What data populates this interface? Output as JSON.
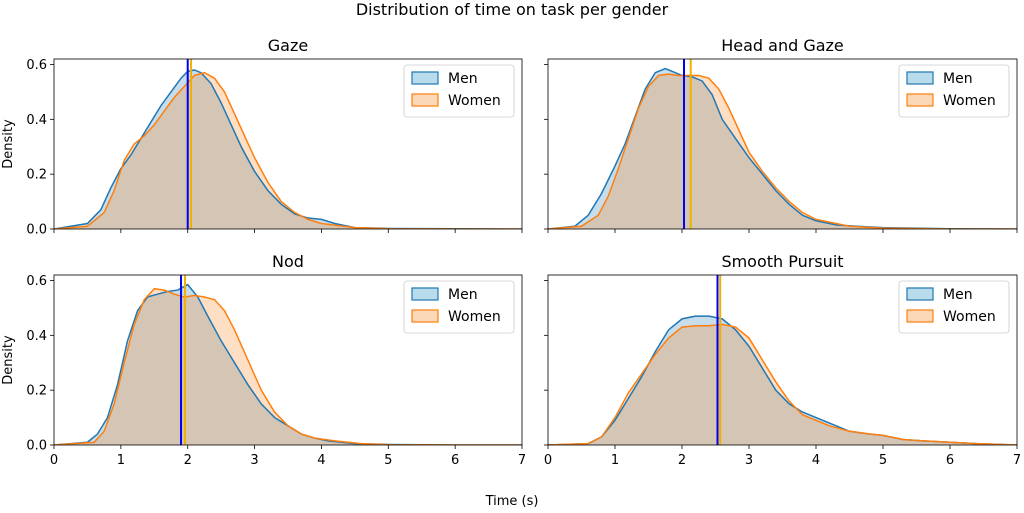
{
  "figure": {
    "title": "Distribution of time on task per gender",
    "xlabel": "Time (s)",
    "ylabel": "Density"
  },
  "chart_data": [
    {
      "type": "area",
      "title": "Gaze",
      "xlim": [
        0,
        7
      ],
      "ylim": [
        0,
        0.62
      ],
      "xticks": [
        "0",
        "1",
        "2",
        "3",
        "4",
        "5",
        "6",
        "7"
      ],
      "yticks": [
        "0.0",
        "0.2",
        "0.4",
        "0.6"
      ],
      "legend": "top-right",
      "series": [
        {
          "name": "Men",
          "color": "#1f77b4",
          "fill": "#b9dcec",
          "mean": 2.0,
          "x": [
            0,
            0.5,
            0.7,
            0.85,
            1.0,
            1.15,
            1.3,
            1.45,
            1.6,
            1.75,
            1.9,
            2.0,
            2.1,
            2.2,
            2.35,
            2.5,
            2.65,
            2.8,
            3.0,
            3.2,
            3.4,
            3.6,
            3.8,
            4.0,
            4.2,
            4.5,
            5.0,
            6.0,
            7.0
          ],
          "y": [
            0.0,
            0.02,
            0.07,
            0.15,
            0.22,
            0.27,
            0.33,
            0.39,
            0.45,
            0.5,
            0.55,
            0.575,
            0.58,
            0.57,
            0.53,
            0.46,
            0.38,
            0.3,
            0.21,
            0.14,
            0.09,
            0.055,
            0.04,
            0.035,
            0.02,
            0.005,
            0.002,
            0.001,
            0.0
          ]
        },
        {
          "name": "Women",
          "color": "#ff7f0e",
          "fill": "#fbd8b8",
          "mean": 2.05,
          "x": [
            0,
            0.5,
            0.75,
            0.9,
            1.05,
            1.2,
            1.35,
            1.5,
            1.65,
            1.8,
            1.95,
            2.1,
            2.25,
            2.4,
            2.55,
            2.7,
            2.85,
            3.0,
            3.2,
            3.4,
            3.6,
            3.8,
            4.0,
            4.5,
            5.0,
            6.0,
            7.0
          ],
          "y": [
            0.0,
            0.01,
            0.06,
            0.14,
            0.25,
            0.31,
            0.34,
            0.38,
            0.43,
            0.48,
            0.52,
            0.56,
            0.57,
            0.55,
            0.5,
            0.42,
            0.34,
            0.26,
            0.17,
            0.1,
            0.06,
            0.035,
            0.02,
            0.005,
            0.001,
            0.0,
            0.0
          ]
        }
      ]
    },
    {
      "type": "area",
      "title": "Head and Gaze",
      "xlim": [
        0,
        7
      ],
      "ylim": [
        0,
        0.62
      ],
      "xticks": [
        "0",
        "1",
        "2",
        "3",
        "4",
        "5",
        "6",
        "7"
      ],
      "yticks": [
        "0.0",
        "0.2",
        "0.4",
        "0.6"
      ],
      "legend": "top-right",
      "series": [
        {
          "name": "Men",
          "color": "#1f77b4",
          "fill": "#b9dcec",
          "mean": 2.03,
          "x": [
            0,
            0.4,
            0.6,
            0.8,
            1.0,
            1.15,
            1.3,
            1.45,
            1.6,
            1.75,
            1.85,
            2.0,
            2.15,
            2.3,
            2.45,
            2.6,
            2.8,
            3.0,
            3.2,
            3.4,
            3.6,
            3.8,
            4.0,
            4.3,
            4.6,
            5.0,
            6.0,
            7.0
          ],
          "y": [
            0.0,
            0.01,
            0.05,
            0.13,
            0.23,
            0.31,
            0.41,
            0.51,
            0.57,
            0.585,
            0.575,
            0.56,
            0.555,
            0.54,
            0.49,
            0.4,
            0.33,
            0.26,
            0.2,
            0.14,
            0.09,
            0.05,
            0.03,
            0.015,
            0.01,
            0.005,
            0.001,
            0.0
          ]
        },
        {
          "name": "Women",
          "color": "#ff7f0e",
          "fill": "#fbd8b8",
          "mean": 2.13,
          "x": [
            0,
            0.5,
            0.75,
            0.9,
            1.05,
            1.2,
            1.35,
            1.5,
            1.65,
            1.8,
            1.95,
            2.1,
            2.25,
            2.4,
            2.55,
            2.7,
            2.85,
            3.0,
            3.2,
            3.4,
            3.6,
            3.8,
            4.0,
            4.5,
            5.0,
            6.0,
            7.0
          ],
          "y": [
            0.0,
            0.01,
            0.05,
            0.12,
            0.22,
            0.33,
            0.44,
            0.52,
            0.56,
            0.565,
            0.56,
            0.56,
            0.56,
            0.55,
            0.51,
            0.44,
            0.36,
            0.28,
            0.21,
            0.15,
            0.1,
            0.06,
            0.035,
            0.01,
            0.003,
            0.0,
            0.0
          ]
        }
      ]
    },
    {
      "type": "area",
      "title": "Nod",
      "xlim": [
        0,
        7
      ],
      "ylim": [
        0,
        0.62
      ],
      "xticks": [
        "0",
        "1",
        "2",
        "3",
        "4",
        "5",
        "6",
        "7"
      ],
      "yticks": [
        "0.0",
        "0.2",
        "0.4",
        "0.6"
      ],
      "legend": "top-right",
      "series": [
        {
          "name": "Men",
          "color": "#1f77b4",
          "fill": "#b9dcec",
          "mean": 1.9,
          "x": [
            0,
            0.5,
            0.65,
            0.8,
            0.95,
            1.1,
            1.25,
            1.4,
            1.55,
            1.7,
            1.85,
            2.0,
            2.15,
            2.3,
            2.5,
            2.7,
            2.9,
            3.1,
            3.3,
            3.5,
            3.7,
            3.9,
            4.1,
            4.5,
            5.0,
            6.0,
            7.0
          ],
          "y": [
            0.0,
            0.01,
            0.04,
            0.1,
            0.22,
            0.38,
            0.49,
            0.54,
            0.55,
            0.56,
            0.565,
            0.585,
            0.54,
            0.47,
            0.38,
            0.3,
            0.22,
            0.15,
            0.1,
            0.07,
            0.04,
            0.025,
            0.015,
            0.005,
            0.002,
            0.0,
            0.0
          ]
        },
        {
          "name": "Women",
          "color": "#ff7f0e",
          "fill": "#fbd8b8",
          "mean": 1.96,
          "x": [
            0,
            0.6,
            0.75,
            0.9,
            1.05,
            1.2,
            1.35,
            1.5,
            1.65,
            1.8,
            1.95,
            2.1,
            2.25,
            2.4,
            2.55,
            2.7,
            2.9,
            3.1,
            3.3,
            3.5,
            3.7,
            3.9,
            4.2,
            4.6,
            5.0,
            6.0,
            7.0
          ],
          "y": [
            0.0,
            0.01,
            0.05,
            0.15,
            0.3,
            0.44,
            0.53,
            0.57,
            0.565,
            0.55,
            0.54,
            0.545,
            0.54,
            0.53,
            0.49,
            0.42,
            0.31,
            0.2,
            0.12,
            0.07,
            0.04,
            0.025,
            0.015,
            0.005,
            0.001,
            0.0,
            0.0
          ]
        }
      ]
    },
    {
      "type": "area",
      "title": "Smooth Pursuit",
      "xlim": [
        0,
        7
      ],
      "ylim": [
        0,
        0.62
      ],
      "xticks": [
        "0",
        "1",
        "2",
        "3",
        "4",
        "5",
        "6",
        "7"
      ],
      "yticks": [
        "0.0",
        "0.2",
        "0.4",
        "0.6"
      ],
      "legend": "top-right",
      "series": [
        {
          "name": "Men",
          "color": "#1f77b4",
          "fill": "#b9dcec",
          "mean": 2.53,
          "x": [
            0,
            0.6,
            0.8,
            1.0,
            1.2,
            1.4,
            1.6,
            1.8,
            2.0,
            2.2,
            2.4,
            2.6,
            2.8,
            3.0,
            3.2,
            3.4,
            3.6,
            3.8,
            4.0,
            4.2,
            4.5,
            4.8,
            5.0,
            5.3,
            5.6,
            6.0,
            6.4,
            7.0
          ],
          "y": [
            0.0,
            0.005,
            0.03,
            0.09,
            0.17,
            0.25,
            0.34,
            0.42,
            0.46,
            0.47,
            0.47,
            0.46,
            0.42,
            0.36,
            0.28,
            0.2,
            0.15,
            0.12,
            0.1,
            0.08,
            0.05,
            0.04,
            0.035,
            0.02,
            0.015,
            0.01,
            0.005,
            0.0
          ]
        },
        {
          "name": "Women",
          "color": "#ff7f0e",
          "fill": "#fbd8b8",
          "mean": 2.57,
          "x": [
            0,
            0.6,
            0.8,
            1.0,
            1.2,
            1.4,
            1.6,
            1.8,
            2.0,
            2.2,
            2.4,
            2.6,
            2.8,
            3.0,
            3.2,
            3.4,
            3.6,
            3.8,
            4.0,
            4.2,
            4.5,
            4.8,
            5.0,
            5.3,
            5.6,
            6.0,
            6.4,
            7.0
          ],
          "y": [
            0.0,
            0.005,
            0.03,
            0.1,
            0.19,
            0.26,
            0.33,
            0.39,
            0.43,
            0.435,
            0.435,
            0.44,
            0.43,
            0.39,
            0.31,
            0.23,
            0.16,
            0.11,
            0.09,
            0.07,
            0.05,
            0.04,
            0.035,
            0.02,
            0.015,
            0.01,
            0.005,
            0.0
          ]
        }
      ]
    }
  ]
}
